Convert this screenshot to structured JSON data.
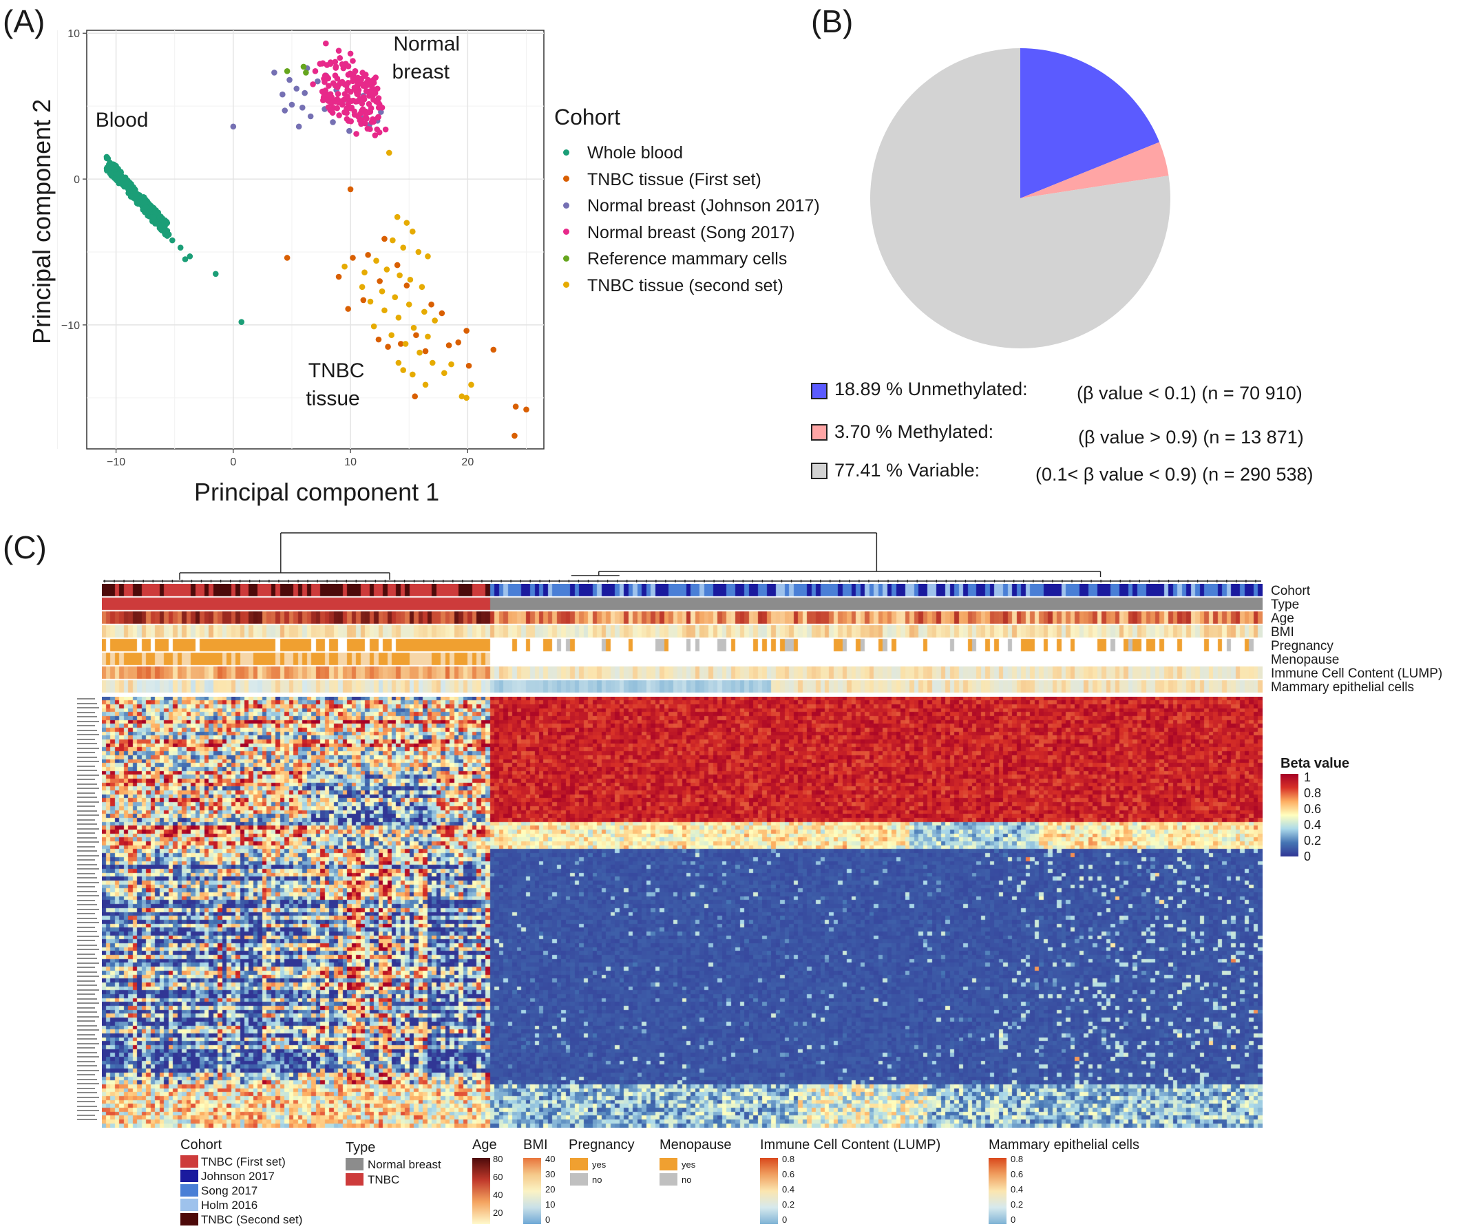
{
  "panel_labels": {
    "a": "(A)",
    "b": "(B)",
    "c": "(C)"
  },
  "chart_data": [
    {
      "type": "scatter",
      "panel": "(A)",
      "xlabel": "Principal component 1",
      "ylabel": "Principal component 2",
      "xlim": [
        -12.5,
        26.5
      ],
      "ylim": [
        -18.5,
        10.2
      ],
      "x_ticks": [
        -10,
        0,
        10,
        20
      ],
      "y_ticks": [
        -10,
        0,
        10
      ],
      "grid": true,
      "annotations": [
        {
          "text": "Normal",
          "x": 16.5,
          "y": 8.8
        },
        {
          "text": "breast",
          "x": 16.0,
          "y": 6.9
        },
        {
          "text": "Blood",
          "x": -9.5,
          "y": 3.6
        },
        {
          "text": "TNBC",
          "x": 8.8,
          "y": -13.6
        },
        {
          "text": "tissue",
          "x": 8.5,
          "y": -15.5
        }
      ],
      "legend_title": "Cohort",
      "legend_position": "right",
      "series": [
        {
          "name": "Whole blood",
          "color": "#1b9e77",
          "points": [
            [
              -10.6,
              1.0
            ],
            [
              -10.2,
              0.6
            ],
            [
              -9.8,
              0.2
            ],
            [
              -9.4,
              -0.2
            ],
            [
              -9.0,
              -0.6
            ],
            [
              -8.6,
              -1.0
            ],
            [
              -8.2,
              -1.4
            ],
            [
              -7.8,
              -1.8
            ],
            [
              -7.4,
              -2.2
            ],
            [
              -7.0,
              -2.6
            ],
            [
              -6.6,
              -3.0
            ],
            [
              -6.2,
              -3.3
            ],
            [
              -10.0,
              0.9
            ],
            [
              -9.6,
              0.5
            ],
            [
              -9.2,
              0.0
            ],
            [
              -8.8,
              -0.3
            ],
            [
              -8.4,
              -0.7
            ],
            [
              -8.0,
              -1.1
            ],
            [
              -7.6,
              -1.5
            ],
            [
              -7.2,
              -2.0
            ],
            [
              -6.8,
              -2.3
            ],
            [
              -10.4,
              0.4
            ],
            [
              -9.9,
              -0.1
            ],
            [
              -9.3,
              -0.5
            ],
            [
              -8.9,
              -0.9
            ],
            [
              -8.5,
              -1.3
            ],
            [
              -8.1,
              -1.7
            ],
            [
              -7.7,
              -2.1
            ],
            [
              -7.3,
              -2.5
            ],
            [
              -6.9,
              -2.9
            ],
            [
              -6.4,
              -3.0
            ],
            [
              -6.0,
              -2.8
            ],
            [
              -5.9,
              -3.5
            ],
            [
              -5.5,
              -3.8
            ],
            [
              -5.2,
              -4.2
            ],
            [
              -4.5,
              -4.7
            ],
            [
              -4.1,
              -5.5
            ],
            [
              -3.7,
              -5.3
            ],
            [
              -1.5,
              -6.5
            ],
            [
              0.7,
              -9.8
            ]
          ]
        },
        {
          "name": "TNBC tissue (First set)",
          "color": "#d95f02",
          "points": [
            [
              10.0,
              -0.7
            ],
            [
              10.2,
              -5.4
            ],
            [
              12.9,
              -4.1
            ],
            [
              11.5,
              -5.2
            ],
            [
              14.0,
              -5.9
            ],
            [
              9.0,
              -6.7
            ],
            [
              12.5,
              -7.0
            ],
            [
              14.8,
              -7.3
            ],
            [
              16.9,
              -8.6
            ],
            [
              9.8,
              -8.9
            ],
            [
              11.1,
              -8.3
            ],
            [
              17.8,
              -9.2
            ],
            [
              15.6,
              -10.7
            ],
            [
              18.4,
              -11.4
            ],
            [
              12.4,
              -11.0
            ],
            [
              14.3,
              -11.3
            ],
            [
              16.4,
              -11.8
            ],
            [
              19.2,
              -11.2
            ],
            [
              13.2,
              -11.5
            ],
            [
              22.2,
              -11.7
            ],
            [
              4.6,
              -5.4
            ],
            [
              19.9,
              -10.4
            ],
            [
              24.1,
              -15.6
            ],
            [
              24.0,
              -17.6
            ],
            [
              25.0,
              -15.8
            ],
            [
              15.5,
              -14.9
            ],
            [
              20.1,
              -12.8
            ]
          ]
        },
        {
          "name": "Normal breast (Johnson 2017)",
          "color": "#7570b3",
          "points": [
            [
              0.0,
              3.6
            ],
            [
              3.5,
              7.3
            ],
            [
              4.8,
              6.8
            ],
            [
              5.4,
              6.2
            ],
            [
              6.1,
              5.9
            ],
            [
              5.0,
              5.1
            ],
            [
              4.4,
              4.7
            ],
            [
              6.6,
              4.3
            ],
            [
              7.8,
              4.8
            ],
            [
              8.5,
              3.9
            ],
            [
              5.6,
              3.6
            ],
            [
              9.4,
              5.4
            ],
            [
              10.9,
              4.2
            ],
            [
              12.3,
              4.0
            ],
            [
              11.6,
              3.7
            ],
            [
              6.3,
              7.6
            ],
            [
              7.2,
              6.7
            ],
            [
              7.9,
              7.1
            ],
            [
              8.8,
              6.1
            ],
            [
              9.9,
              3.3
            ],
            [
              11.1,
              5.7
            ],
            [
              4.2,
              5.8
            ],
            [
              5.9,
              4.9
            ],
            [
              12.6,
              4.6
            ]
          ]
        },
        {
          "name": "Normal breast (Song 2017)",
          "color": "#e7298a",
          "points": [
            [
              7.9,
              9.3
            ],
            [
              9.0,
              8.8
            ],
            [
              10.0,
              8.6
            ],
            [
              8.3,
              8.0
            ],
            [
              9.4,
              7.6
            ],
            [
              10.4,
              7.4
            ],
            [
              11.2,
              7.1
            ],
            [
              12.0,
              6.6
            ],
            [
              8.7,
              7.1
            ],
            [
              9.8,
              6.6
            ],
            [
              10.7,
              6.1
            ],
            [
              11.6,
              5.7
            ],
            [
              12.4,
              5.2
            ],
            [
              7.4,
              7.9
            ],
            [
              6.8,
              6.5
            ],
            [
              7.6,
              6.0
            ],
            [
              8.4,
              5.6
            ],
            [
              9.3,
              5.1
            ],
            [
              10.1,
              4.9
            ],
            [
              11.0,
              4.6
            ],
            [
              11.9,
              4.1
            ],
            [
              12.7,
              4.9
            ],
            [
              13.0,
              3.4
            ],
            [
              12.1,
              3.0
            ],
            [
              10.5,
              3.1
            ],
            [
              9.1,
              8.3
            ],
            [
              10.2,
              8.1
            ],
            [
              11.5,
              6.8
            ],
            [
              8.1,
              6.9
            ],
            [
              9.6,
              7.9
            ],
            [
              10.8,
              5.5
            ],
            [
              12.3,
              6.2
            ],
            [
              7.0,
              7.4
            ],
            [
              8.9,
              6.3
            ],
            [
              11.3,
              4.3
            ]
          ]
        },
        {
          "name": "Reference mammary cells",
          "color": "#66a61e",
          "points": [
            [
              4.6,
              7.4
            ],
            [
              6.2,
              7.3
            ],
            [
              6.0,
              7.7
            ]
          ]
        },
        {
          "name": "TNBC tissue (second set)",
          "color": "#e6ab02",
          "points": [
            [
              13.3,
              1.8
            ],
            [
              14.0,
              -2.6
            ],
            [
              14.8,
              -3.0
            ],
            [
              15.3,
              -3.6
            ],
            [
              13.6,
              -4.2
            ],
            [
              14.5,
              -4.7
            ],
            [
              15.8,
              -5.0
            ],
            [
              16.6,
              -5.3
            ],
            [
              12.2,
              -5.6
            ],
            [
              13.1,
              -6.2
            ],
            [
              14.2,
              -6.6
            ],
            [
              15.1,
              -6.9
            ],
            [
              16.1,
              -7.4
            ],
            [
              12.7,
              -7.7
            ],
            [
              13.8,
              -8.1
            ],
            [
              15.0,
              -8.6
            ],
            [
              16.3,
              -9.1
            ],
            [
              17.2,
              -9.7
            ],
            [
              11.7,
              -8.4
            ],
            [
              12.9,
              -9.0
            ],
            [
              14.1,
              -9.5
            ],
            [
              15.4,
              -10.2
            ],
            [
              16.6,
              -10.8
            ],
            [
              13.5,
              -10.7
            ],
            [
              14.7,
              -11.3
            ],
            [
              15.9,
              -11.9
            ],
            [
              17.0,
              -12.6
            ],
            [
              18.0,
              -13.3
            ],
            [
              14.1,
              -12.6
            ],
            [
              15.3,
              -13.4
            ],
            [
              16.4,
              -14.1
            ],
            [
              19.5,
              -14.9
            ],
            [
              20.3,
              -14.1
            ],
            [
              19.9,
              -15.0
            ],
            [
              14.5,
              -13.1
            ],
            [
              12.0,
              -10.1
            ],
            [
              18.6,
              -12.7
            ],
            [
              11.2,
              -6.4
            ],
            [
              9.5,
              -6.0
            ],
            [
              11.0,
              -7.4
            ]
          ]
        }
      ]
    },
    {
      "type": "pie",
      "panel": "(B)",
      "slices": [
        {
          "label": "Unmethylated",
          "value": 18.89,
          "color": "#5b5bff"
        },
        {
          "label": "Methylated",
          "value": 3.7,
          "color": "#ffa5a5"
        },
        {
          "label": "Variable",
          "value": 77.41,
          "color": "#d3d3d3"
        }
      ],
      "legend": [
        {
          "pct": "18.89 % Unmethylated:",
          "detail": "(β value < 0.1) (n = 70 910)",
          "color": "#5b5bff"
        },
        {
          "pct": "3.70 % Methylated:",
          "detail": "(β value > 0.9) (n = 13 871)",
          "color": "#ffa5a5"
        },
        {
          "pct": "77.41 % Variable:",
          "detail": "(0.1< β value < 0.9) (n = 290 538)",
          "color": "#d3d3d3"
        }
      ]
    },
    {
      "type": "heatmap",
      "panel": "(C)",
      "legend_title": "Beta value",
      "scale": {
        "min": 0,
        "max": 1,
        "ticks": [
          "1",
          "0.8",
          "0.6",
          "0.4",
          "0.2",
          "0"
        ],
        "colors": [
          "#313695",
          "#4575b4",
          "#abd9e9",
          "#ffffbf",
          "#fdae61",
          "#d73027",
          "#a50026"
        ]
      },
      "annotation_tracks": [
        "Cohort",
        "Type",
        "Age",
        "BMI",
        "Pregnancy",
        "Menopause",
        "Immune Cell Content (LUMP)",
        "Mammary epithelial cells"
      ],
      "column_groups": [
        {
          "name": "TNBC",
          "fraction": 0.335
        },
        {
          "name": "Normal breast",
          "fraction": 0.665
        }
      ],
      "row_blocks": [
        {
          "fraction": 0.355,
          "tnbc": "mixed-high",
          "normal": "high"
        },
        {
          "fraction": 0.545,
          "tnbc": "mixed-low",
          "normal": "low"
        },
        {
          "fraction": 0.1,
          "tnbc": "mid",
          "normal": "mid-low"
        }
      ]
    }
  ],
  "heatmap_legends": {
    "cohort": {
      "title": "Cohort",
      "items": [
        {
          "label": "TNBC (First set)",
          "color": "#cd3b3b"
        },
        {
          "label": "Johnson 2017",
          "color": "#1a1a9e"
        },
        {
          "label": "Song 2017",
          "color": "#4a7fd6"
        },
        {
          "label": "Holm 2016",
          "color": "#9ec2ec"
        },
        {
          "label": "TNBC (Second set)",
          "color": "#4d0a0a"
        }
      ]
    },
    "type": {
      "title": "Type",
      "items": [
        {
          "label": "Normal breast",
          "color": "#8c8c8c"
        },
        {
          "label": "TNBC",
          "color": "#cd3b3b"
        }
      ]
    },
    "age": {
      "title": "Age",
      "ticks": [
        "80",
        "60",
        "40",
        "20"
      ],
      "colors": [
        "#4d0a0a",
        "#c0392b",
        "#f4a460",
        "#fffacd"
      ]
    },
    "bmi": {
      "title": "BMI",
      "ticks": [
        "40",
        "30",
        "20",
        "10",
        "0"
      ],
      "colors": [
        "#e8743b",
        "#f5c98a",
        "#fbf3c4",
        "#c9e0e8",
        "#6fa8d6"
      ]
    },
    "pregnancy": {
      "title": "Pregnancy",
      "items": [
        {
          "label": "yes",
          "color": "#f0a030"
        },
        {
          "label": "no",
          "color": "#c0c0c0"
        }
      ]
    },
    "menopause": {
      "title": "Menopause",
      "items": [
        {
          "label": "yes",
          "color": "#f0a030"
        },
        {
          "label": "no",
          "color": "#c0c0c0"
        }
      ]
    },
    "immune": {
      "title": "Immune Cell Content (LUMP)",
      "ticks": [
        "0.8",
        "0.6",
        "0.4",
        "0.2",
        "0"
      ],
      "colors": [
        "#d9481c",
        "#f0a060",
        "#fbe6b0",
        "#d6e9ee",
        "#7fb3d5"
      ]
    },
    "epithelial": {
      "title": "Mammary epithelial cells",
      "ticks": [
        "0.8",
        "0.6",
        "0.4",
        "0.2",
        "0"
      ],
      "colors": [
        "#d9481c",
        "#f0a060",
        "#fbe6b0",
        "#d6e9ee",
        "#7fb3d5"
      ]
    }
  }
}
